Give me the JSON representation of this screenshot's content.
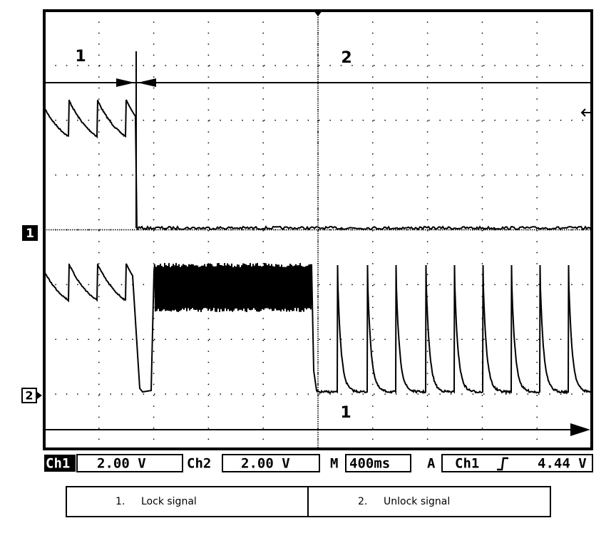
{
  "annotations": {
    "lock_marker": "1",
    "unlock_marker": "2",
    "bottom_marker": "1"
  },
  "channel_markers": {
    "ch1": "1",
    "ch2": "2"
  },
  "status_bar": {
    "ch1_label": "Ch1",
    "ch1_scale": "2.00 V",
    "ch2_label": "Ch2",
    "ch2_scale": "2.00 V",
    "timebase_label": "M",
    "timebase": "400ms",
    "trigger_label": "A",
    "trigger_source": "Ch1",
    "trigger_level": "4.44 V"
  },
  "legend": {
    "items": [
      {
        "number": "1.",
        "label": "Lock signal"
      },
      {
        "number": "2.",
        "label": "Unlock signal"
      }
    ]
  }
}
